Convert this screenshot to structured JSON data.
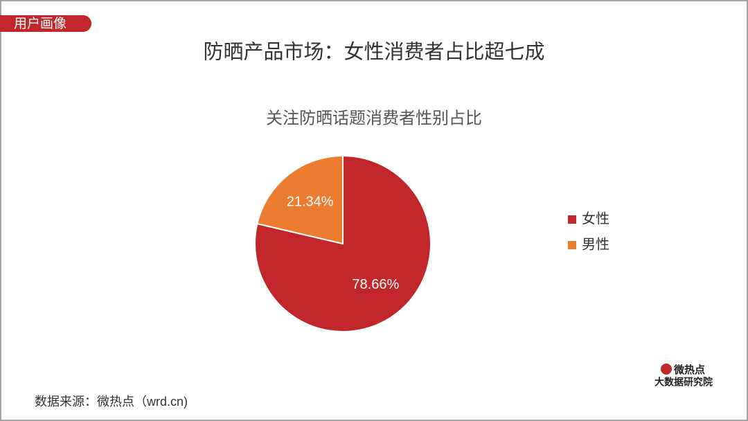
{
  "tag": "用户画像",
  "source": "数据来源：微热点（wrd.cn)",
  "logo": {
    "name": "微热点",
    "subtitle": "大数据研究院"
  },
  "chart_data": {
    "type": "pie",
    "title": "防晒产品市场：女性消费者占比超七成",
    "subtitle": "关注防晒话题消费者性别占比",
    "categories": [
      "女性",
      "男性"
    ],
    "values": [
      78.66,
      21.34
    ],
    "value_labels": [
      "78.66%",
      "21.34%"
    ],
    "colors": [
      "#c1272a",
      "#ec7c30"
    ],
    "legend": "right"
  }
}
